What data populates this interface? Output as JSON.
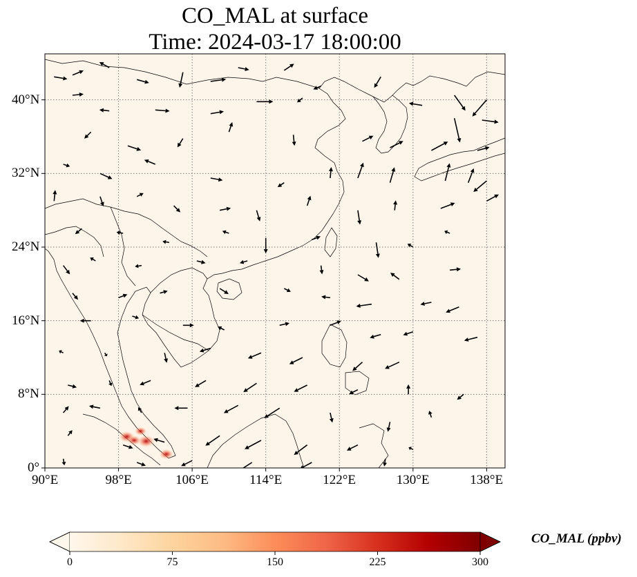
{
  "title": {
    "line1": "CO_MAL at surface",
    "line2": "Time: 2024-03-17 18:00:00"
  },
  "map": {
    "extent": {
      "lon_min": 90,
      "lon_max": 140,
      "lat_min": 0,
      "lat_max": 45
    },
    "projection": "PlateCarree",
    "gridlines": "dotted gray",
    "lon_ticks": [
      {
        "value": 90,
        "label": "90°E"
      },
      {
        "value": 98,
        "label": "98°E"
      },
      {
        "value": 106,
        "label": "106°E"
      },
      {
        "value": 114,
        "label": "114°E"
      },
      {
        "value": 122,
        "label": "122°E"
      },
      {
        "value": 130,
        "label": "130°E"
      },
      {
        "value": 138,
        "label": "138°E"
      }
    ],
    "lat_ticks": [
      {
        "value": 0,
        "label": "0°"
      },
      {
        "value": 8,
        "label": "8°N"
      },
      {
        "value": 16,
        "label": "16°N"
      },
      {
        "value": 24,
        "label": "24°N"
      },
      {
        "value": 32,
        "label": "32°N"
      },
      {
        "value": 40,
        "label": "40°N"
      }
    ],
    "background_color": "#fdf5ea",
    "hotspots": [
      {
        "lon": 98.9,
        "lat": 3.4,
        "value": 230
      },
      {
        "lon": 99.7,
        "lat": 3.0,
        "value": 190
      },
      {
        "lon": 101.0,
        "lat": 2.9,
        "value": 260
      },
      {
        "lon": 103.2,
        "lat": 1.5,
        "value": 200
      },
      {
        "lon": 100.4,
        "lat": 4.0,
        "value": 150
      }
    ]
  },
  "colorbar": {
    "label": "CO_MAL (ppbv)",
    "colormap": "OrRd",
    "min": 0,
    "max": 300,
    "extend": "both",
    "ticks": [
      {
        "value": 0,
        "label": "0"
      },
      {
        "value": 75,
        "label": "75"
      },
      {
        "value": 150,
        "label": "150"
      },
      {
        "value": 225,
        "label": "225"
      },
      {
        "value": 300,
        "label": "300"
      }
    ],
    "colors": [
      "#fff7ec",
      "#fee8c8",
      "#fdd49e",
      "#fdbb84",
      "#fc8d59",
      "#ef6548",
      "#d7301f",
      "#b30000",
      "#7f0000"
    ]
  },
  "wind_vectors": [
    {
      "lon": 91.0,
      "lat": 42.5,
      "u": 1.2,
      "v": -0.2
    },
    {
      "lon": 93.0,
      "lat": 42.7,
      "u": 1.0,
      "v": 0.4
    },
    {
      "lon": 97.0,
      "lat": 43.5,
      "u": -0.9,
      "v": 0.5
    },
    {
      "lon": 100.0,
      "lat": 42.2,
      "u": 1.1,
      "v": -0.3
    },
    {
      "lon": 105.0,
      "lat": 43.0,
      "u": -0.3,
      "v": -1.4
    },
    {
      "lon": 108.0,
      "lat": 42.0,
      "u": 1.4,
      "v": 0.2
    },
    {
      "lon": 111.0,
      "lat": 43.5,
      "u": 1.0,
      "v": -0.2
    },
    {
      "lon": 116.0,
      "lat": 43.2,
      "u": 0.9,
      "v": 0.6
    },
    {
      "lon": 120.0,
      "lat": 41.5,
      "u": -0.7,
      "v": -0.3
    },
    {
      "lon": 126.5,
      "lat": 42.5,
      "u": -0.6,
      "v": -1.0
    },
    {
      "lon": 134.5,
      "lat": 40.5,
      "u": 1.0,
      "v": -1.4
    },
    {
      "lon": 138.0,
      "lat": 40.0,
      "u": -1.3,
      "v": -1.5
    },
    {
      "lon": 93.0,
      "lat": 40.5,
      "u": 1.0,
      "v": 0.1
    },
    {
      "lon": 97.0,
      "lat": 38.8,
      "u": -0.9,
      "v": 0.1
    },
    {
      "lon": 102.0,
      "lat": 38.9,
      "u": 1.3,
      "v": -0.1
    },
    {
      "lon": 108.0,
      "lat": 38.5,
      "u": 1.2,
      "v": 0.2
    },
    {
      "lon": 113.0,
      "lat": 39.8,
      "u": 1.5,
      "v": 0.0
    },
    {
      "lon": 118.0,
      "lat": 40.2,
      "u": -0.5,
      "v": -0.4
    },
    {
      "lon": 131.0,
      "lat": 39.4,
      "u": -1.2,
      "v": 0.2
    },
    {
      "lon": 134.5,
      "lat": 38.0,
      "u": 0.5,
      "v": -2.2
    },
    {
      "lon": 137.5,
      "lat": 37.8,
      "u": 1.5,
      "v": -0.2
    },
    {
      "lon": 95.0,
      "lat": 36.5,
      "u": -0.6,
      "v": -0.6
    },
    {
      "lon": 99.0,
      "lat": 35.0,
      "u": 1.2,
      "v": -0.4
    },
    {
      "lon": 105.0,
      "lat": 35.8,
      "u": -0.5,
      "v": -0.8
    },
    {
      "lon": 110.0,
      "lat": 36.5,
      "u": 0.3,
      "v": 0.9
    },
    {
      "lon": 117.0,
      "lat": 36.2,
      "u": 0.1,
      "v": -1.0
    },
    {
      "lon": 124.5,
      "lat": 35.5,
      "u": 1.0,
      "v": 0.5
    },
    {
      "lon": 127.5,
      "lat": 34.8,
      "u": 1.2,
      "v": 0.6
    },
    {
      "lon": 132.0,
      "lat": 34.5,
      "u": 1.5,
      "v": 0.8
    },
    {
      "lon": 137.0,
      "lat": 34.5,
      "u": 1.1,
      "v": 0.3
    },
    {
      "lon": 92.0,
      "lat": 33.0,
      "u": 0.6,
      "v": -0.2
    },
    {
      "lon": 96.0,
      "lat": 32.0,
      "u": 1.1,
      "v": -0.5
    },
    {
      "lon": 102.0,
      "lat": 33.0,
      "u": -1.0,
      "v": 0.4
    },
    {
      "lon": 108.0,
      "lat": 31.5,
      "u": 1.1,
      "v": -0.2
    },
    {
      "lon": 116.0,
      "lat": 31.0,
      "u": -0.6,
      "v": -0.4
    },
    {
      "lon": 121.0,
      "lat": 31.5,
      "u": 0.1,
      "v": 1.0
    },
    {
      "lon": 124.0,
      "lat": 31.5,
      "u": 0.5,
      "v": 1.4
    },
    {
      "lon": 127.5,
      "lat": 31.0,
      "u": 0.4,
      "v": 1.4
    },
    {
      "lon": 133.5,
      "lat": 31.2,
      "u": 0.4,
      "v": 1.6
    },
    {
      "lon": 136.0,
      "lat": 31.0,
      "u": 0.5,
      "v": 1.3
    },
    {
      "lon": 138.0,
      "lat": 31.2,
      "u": -1.2,
      "v": -1.0
    },
    {
      "lon": 91.0,
      "lat": 29.0,
      "u": 0.1,
      "v": 1.0
    },
    {
      "lon": 96.0,
      "lat": 29.5,
      "u": 0.3,
      "v": -0.9
    },
    {
      "lon": 100.0,
      "lat": 29.5,
      "u": 0.6,
      "v": 0.3
    },
    {
      "lon": 104.0,
      "lat": 28.5,
      "u": 0.6,
      "v": -0.6
    },
    {
      "lon": 109.0,
      "lat": 28.0,
      "u": 1.0,
      "v": 0.2
    },
    {
      "lon": 113.0,
      "lat": 28.0,
      "u": 0.3,
      "v": -1.0
    },
    {
      "lon": 118.5,
      "lat": 28.5,
      "u": 0.3,
      "v": 0.9
    },
    {
      "lon": 124.0,
      "lat": 28.0,
      "u": 0.2,
      "v": -1.3
    },
    {
      "lon": 128.0,
      "lat": 28.0,
      "u": 0.1,
      "v": 0.9
    },
    {
      "lon": 133.0,
      "lat": 28.2,
      "u": 1.3,
      "v": 0.5
    },
    {
      "lon": 138.0,
      "lat": 29.0,
      "u": 1.1,
      "v": 0.6
    },
    {
      "lon": 94.0,
      "lat": 26.0,
      "u": -0.6,
      "v": -0.5
    },
    {
      "lon": 98.5,
      "lat": 25.5,
      "u": -0.6,
      "v": 0.1
    },
    {
      "lon": 103.5,
      "lat": 24.5,
      "u": -0.6,
      "v": 0.1
    },
    {
      "lon": 110.0,
      "lat": 25.5,
      "u": -0.6,
      "v": 0.2
    },
    {
      "lon": 114.0,
      "lat": 25.0,
      "u": 0.0,
      "v": -1.4
    },
    {
      "lon": 119.0,
      "lat": 24.8,
      "u": 0.8,
      "v": 0.3
    },
    {
      "lon": 126.0,
      "lat": 24.5,
      "u": 0.2,
      "v": -1.4
    },
    {
      "lon": 130.0,
      "lat": 24.0,
      "u": -0.5,
      "v": 0.3
    },
    {
      "lon": 134.0,
      "lat": 25.5,
      "u": -0.5,
      "v": 0.2
    },
    {
      "lon": 92.0,
      "lat": 22.0,
      "u": 0.6,
      "v": -0.8
    },
    {
      "lon": 95.5,
      "lat": 22.5,
      "u": -0.5,
      "v": 0.3
    },
    {
      "lon": 100.5,
      "lat": 22.0,
      "u": -0.6,
      "v": -0.1
    },
    {
      "lon": 106.5,
      "lat": 22.5,
      "u": 0.8,
      "v": -0.2
    },
    {
      "lon": 112.0,
      "lat": 22.5,
      "u": -0.7,
      "v": -0.2
    },
    {
      "lon": 120.0,
      "lat": 22.0,
      "u": 0.1,
      "v": -0.8
    },
    {
      "lon": 124.0,
      "lat": 21.0,
      "u": 1.0,
      "v": -0.6
    },
    {
      "lon": 128.5,
      "lat": 20.5,
      "u": -0.8,
      "v": 0.6
    },
    {
      "lon": 134.0,
      "lat": 21.5,
      "u": 1.0,
      "v": 0.1
    },
    {
      "lon": 93.0,
      "lat": 19.0,
      "u": 0.5,
      "v": -0.6
    },
    {
      "lon": 98.0,
      "lat": 18.5,
      "u": 0.8,
      "v": 0.3
    },
    {
      "lon": 102.5,
      "lat": 19.0,
      "u": 0.7,
      "v": 0.2
    },
    {
      "lon": 109.0,
      "lat": 19.5,
      "u": 0.8,
      "v": -0.5
    },
    {
      "lon": 116.0,
      "lat": 19.5,
      "u": 0.6,
      "v": -0.3
    },
    {
      "lon": 121.0,
      "lat": 18.5,
      "u": -0.8,
      "v": 0.1
    },
    {
      "lon": 125.5,
      "lat": 17.8,
      "u": -1.4,
      "v": -0.2
    },
    {
      "lon": 132.0,
      "lat": 18.0,
      "u": -1.0,
      "v": -0.2
    },
    {
      "lon": 135.0,
      "lat": 17.5,
      "u": -1.2,
      "v": -0.5
    },
    {
      "lon": 95.0,
      "lat": 16.0,
      "u": -1.0,
      "v": 0.0
    },
    {
      "lon": 99.5,
      "lat": 16.5,
      "u": 0.6,
      "v": -0.2
    },
    {
      "lon": 105.0,
      "lat": 15.5,
      "u": 1.0,
      "v": 0.0
    },
    {
      "lon": 109.5,
      "lat": 15.0,
      "u": -0.6,
      "v": 0.3
    },
    {
      "lon": 115.5,
      "lat": 15.5,
      "u": 0.9,
      "v": 0.2
    },
    {
      "lon": 121.0,
      "lat": 15.5,
      "u": 1.0,
      "v": 0.4
    },
    {
      "lon": 126.5,
      "lat": 14.5,
      "u": -1.0,
      "v": -0.3
    },
    {
      "lon": 130.0,
      "lat": 14.8,
      "u": -0.9,
      "v": -0.3
    },
    {
      "lon": 137.0,
      "lat": 14.2,
      "u": -1.2,
      "v": -0.3
    },
    {
      "lon": 92.0,
      "lat": 12.5,
      "u": -0.4,
      "v": 0.2
    },
    {
      "lon": 96.5,
      "lat": 12.5,
      "u": 0.2,
      "v": -0.3
    },
    {
      "lon": 103.0,
      "lat": 12.5,
      "u": 0.2,
      "v": -0.9
    },
    {
      "lon": 108.0,
      "lat": 13.0,
      "u": -1.0,
      "v": -0.3
    },
    {
      "lon": 113.5,
      "lat": 12.5,
      "u": -1.2,
      "v": -0.5
    },
    {
      "lon": 118.0,
      "lat": 12.0,
      "u": -1.2,
      "v": -0.6
    },
    {
      "lon": 124.5,
      "lat": 11.5,
      "u": -0.9,
      "v": -0.8
    },
    {
      "lon": 128.5,
      "lat": 11.5,
      "u": -1.3,
      "v": -0.6
    },
    {
      "lon": 92.5,
      "lat": 9.0,
      "u": 0.8,
      "v": -0.2
    },
    {
      "lon": 97.0,
      "lat": 9.5,
      "u": 0.2,
      "v": -0.5
    },
    {
      "lon": 101.5,
      "lat": 9.5,
      "u": -1.0,
      "v": -0.4
    },
    {
      "lon": 107.5,
      "lat": 9.5,
      "u": -1.0,
      "v": -0.6
    },
    {
      "lon": 113.0,
      "lat": 9.2,
      "u": -1.2,
      "v": -0.8
    },
    {
      "lon": 118.5,
      "lat": 9.0,
      "u": -1.2,
      "v": -0.6
    },
    {
      "lon": 124.0,
      "lat": 8.5,
      "u": -0.8,
      "v": -0.4
    },
    {
      "lon": 129.5,
      "lat": 8.0,
      "u": 0.0,
      "v": 0.9
    },
    {
      "lon": 135.5,
      "lat": 8.0,
      "u": -0.6,
      "v": -0.5
    },
    {
      "lon": 92.0,
      "lat": 6.0,
      "u": 0.5,
      "v": 0.6
    },
    {
      "lon": 96.0,
      "lat": 6.5,
      "u": -1.0,
      "v": 0.2
    },
    {
      "lon": 100.5,
      "lat": 6.0,
      "u": -0.3,
      "v": 0.5
    },
    {
      "lon": 105.5,
      "lat": 6.5,
      "u": -1.2,
      "v": 0.0
    },
    {
      "lon": 111.0,
      "lat": 6.8,
      "u": -1.3,
      "v": -0.7
    },
    {
      "lon": 115.5,
      "lat": 6.5,
      "u": -1.4,
      "v": -0.9
    },
    {
      "lon": 121.0,
      "lat": 6.0,
      "u": 0.2,
      "v": -0.9
    },
    {
      "lon": 127.5,
      "lat": 5.0,
      "u": -0.2,
      "v": -0.9
    },
    {
      "lon": 132.0,
      "lat": 5.5,
      "u": -0.2,
      "v": 0.6
    },
    {
      "lon": 92.5,
      "lat": 3.5,
      "u": 0.4,
      "v": 0.5
    },
    {
      "lon": 98.5,
      "lat": 2.5,
      "u": 0.9,
      "v": -0.3
    },
    {
      "lon": 103.0,
      "lat": 2.8,
      "u": -1.0,
      "v": 0.3
    },
    {
      "lon": 109.0,
      "lat": 3.5,
      "u": -1.3,
      "v": -0.9
    },
    {
      "lon": 113.5,
      "lat": 3.0,
      "u": -1.5,
      "v": -0.8
    },
    {
      "lon": 118.5,
      "lat": 2.5,
      "u": -1.2,
      "v": -0.9
    },
    {
      "lon": 124.0,
      "lat": 2.5,
      "u": -1.0,
      "v": -0.5
    },
    {
      "lon": 130.0,
      "lat": 2.0,
      "u": -0.4,
      "v": 0.2
    },
    {
      "lon": 92.0,
      "lat": 1.0,
      "u": 0.1,
      "v": -0.6
    },
    {
      "lon": 100.0,
      "lat": 0.6,
      "u": 0.8,
      "v": -0.3
    },
    {
      "lon": 106.0,
      "lat": 0.8,
      "u": -1.0,
      "v": -0.5
    },
    {
      "lon": 112.5,
      "lat": 0.6,
      "u": -1.4,
      "v": -0.9
    },
    {
      "lon": 119.0,
      "lat": 0.6,
      "u": -1.1,
      "v": -0.6
    },
    {
      "lon": 127.0,
      "lat": 1.0,
      "u": -0.1,
      "v": -0.7
    }
  ]
}
